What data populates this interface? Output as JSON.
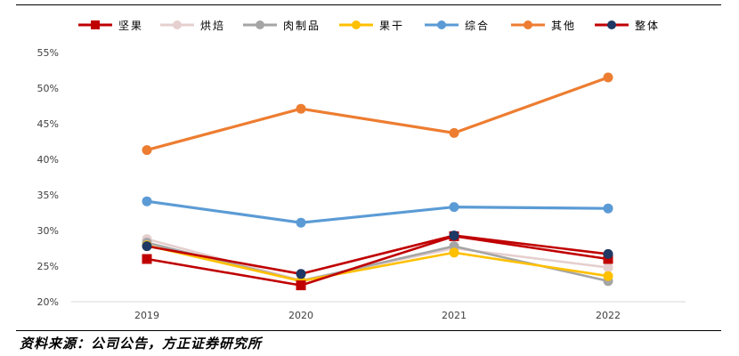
{
  "chart_data": {
    "type": "line",
    "categories": [
      "2019",
      "2020",
      "2021",
      "2022"
    ],
    "ylim": [
      20,
      55
    ],
    "yticks": [
      "20%",
      "25%",
      "30%",
      "35%",
      "40%",
      "45%",
      "50%",
      "55%"
    ],
    "ytick_values": [
      20,
      25,
      30,
      35,
      40,
      45,
      50,
      55
    ],
    "grid": false,
    "legend_placement": "top",
    "series": [
      {
        "name": "坚果",
        "color": "#c00000",
        "marker": "square",
        "values": [
          26.0,
          22.3,
          29.2,
          26.0
        ]
      },
      {
        "name": "烘焙",
        "color": "#e6cfcf",
        "marker": "circle",
        "values": [
          28.8,
          23.0,
          27.5,
          24.8
        ]
      },
      {
        "name": "肉制品",
        "color": "#a5a5a5",
        "marker": "circle",
        "values": [
          28.3,
          22.9,
          27.8,
          22.9
        ]
      },
      {
        "name": "果干",
        "color": "#ffc000",
        "marker": "circle",
        "values": [
          27.9,
          22.9,
          26.9,
          23.6
        ]
      },
      {
        "name": "综合",
        "color": "#5b9bd5",
        "marker": "circle",
        "values": [
          34.1,
          31.1,
          33.3,
          33.1
        ]
      },
      {
        "name": "其他",
        "color": "#ed7d31",
        "marker": "circle",
        "values": [
          41.3,
          47.1,
          43.7,
          51.5
        ]
      },
      {
        "name": "整体",
        "color": "#1f3864",
        "marker": "circle",
        "line_color": "#c00000",
        "values": [
          27.8,
          23.9,
          29.3,
          26.7
        ]
      }
    ]
  },
  "source_text": "资料来源：公司公告，方正证券研究所"
}
